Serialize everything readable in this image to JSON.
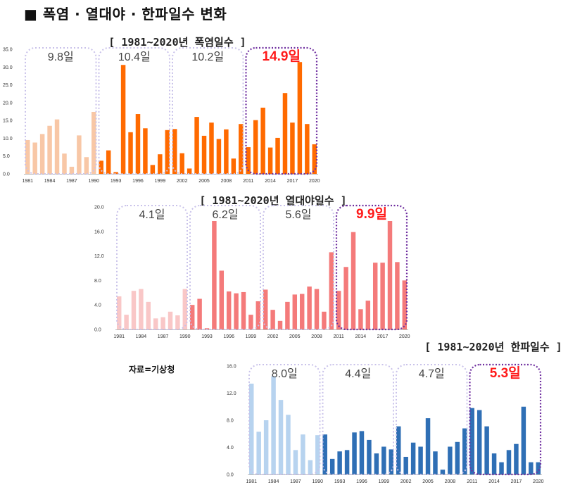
{
  "page": {
    "title": "■ 폭염 · 열대야 · 한파일수 변화",
    "source": "자료=기상청"
  },
  "chart_data": [
    {
      "type": "bar",
      "title": "[ 1981~2020년 폭염일수 ]",
      "categories": [
        1981,
        1982,
        1983,
        1984,
        1985,
        1986,
        1987,
        1988,
        1989,
        1990,
        1991,
        1992,
        1993,
        1994,
        1995,
        1996,
        1997,
        1998,
        1999,
        2000,
        2001,
        2002,
        2003,
        2004,
        2005,
        2006,
        2007,
        2008,
        2009,
        2010,
        2011,
        2012,
        2013,
        2014,
        2015,
        2016,
        2017,
        2018,
        2019,
        2020
      ],
      "values": [
        9.5,
        8.8,
        11.2,
        13.5,
        15.3,
        5.7,
        2.0,
        10.8,
        4.7,
        17.4,
        3.7,
        6.6,
        0.5,
        30.6,
        11.7,
        16.8,
        12.8,
        2.5,
        5.5,
        12.3,
        12.6,
        5.8,
        1.5,
        16.0,
        10.7,
        14.4,
        9.8,
        12.5,
        4.3,
        14.0,
        7.5,
        15.1,
        18.6,
        7.4,
        10.1,
        22.7,
        14.4,
        31.4,
        14.0,
        8.3
      ],
      "xticks": [
        "1981",
        "1984",
        "1987",
        "1990",
        "1993",
        "1996",
        "1999",
        "2002",
        "2005",
        "2008",
        "2011",
        "2014",
        "2017",
        "2020"
      ],
      "yticks": [
        "0.0",
        "5.0",
        "10.0",
        "15.0",
        "20.0",
        "25.0",
        "30.0",
        "35.0"
      ],
      "ylim": [
        0,
        35
      ],
      "decade_averages": [
        "9.8일",
        "10.4일",
        "10.2일",
        "14.9일"
      ],
      "colors": {
        "light": "#f8c7a6",
        "dark": "#ff6a00"
      }
    },
    {
      "type": "bar",
      "title": "[ 1981~2020년 열대야일수 ]",
      "categories": [
        1981,
        1982,
        1983,
        1984,
        1985,
        1986,
        1987,
        1988,
        1989,
        1990,
        1991,
        1992,
        1993,
        1994,
        1995,
        1996,
        1997,
        1998,
        1999,
        2000,
        2001,
        2002,
        2003,
        2004,
        2005,
        2006,
        2007,
        2008,
        2009,
        2010,
        2011,
        2012,
        2013,
        2014,
        2015,
        2016,
        2017,
        2018,
        2019,
        2020
      ],
      "values": [
        5.4,
        2.4,
        6.3,
        6.6,
        4.5,
        1.8,
        2.0,
        2.9,
        2.3,
        6.6,
        4.0,
        5.0,
        0.2,
        17.7,
        9.6,
        6.2,
        5.9,
        6.1,
        2.4,
        4.6,
        6.5,
        3.2,
        1.4,
        4.5,
        5.7,
        5.8,
        7.0,
        6.6,
        2.9,
        12.6,
        6.3,
        10.2,
        15.9,
        3.3,
        4.7,
        10.9,
        10.9,
        17.7,
        11.0,
        8.0
      ],
      "xticks": [
        "1981",
        "1984",
        "1987",
        "1990",
        "1993",
        "1996",
        "1999",
        "2002",
        "2005",
        "2008",
        "2011",
        "2014",
        "2017",
        "2020"
      ],
      "yticks": [
        "0.0",
        "4.0",
        "8.0",
        "12.0",
        "16.0",
        "20.0"
      ],
      "ylim": [
        0,
        20
      ],
      "decade_averages": [
        "4.1일",
        "6.2일",
        "5.6일",
        "9.9일"
      ],
      "colors": {
        "light": "#f9c7c7",
        "dark": "#f47a7a"
      }
    },
    {
      "type": "bar",
      "title": "[ 1981~2020년 한파일수 ]",
      "categories": [
        1981,
        1982,
        1983,
        1984,
        1985,
        1986,
        1987,
        1988,
        1989,
        1990,
        1991,
        1992,
        1993,
        1994,
        1995,
        1996,
        1997,
        1998,
        1999,
        2000,
        2001,
        2002,
        2003,
        2004,
        2005,
        2006,
        2007,
        2008,
        2009,
        2010,
        2011,
        2012,
        2013,
        2014,
        2015,
        2016,
        2017,
        2018,
        2019,
        2020
      ],
      "values": [
        13.4,
        6.3,
        8.0,
        14.5,
        11.0,
        8.8,
        3.6,
        5.9,
        2.1,
        5.8,
        5.9,
        2.3,
        3.4,
        3.6,
        6.2,
        6.4,
        5.1,
        3.1,
        4.1,
        3.7,
        7.1,
        2.6,
        4.7,
        4.1,
        8.3,
        3.4,
        0.7,
        4.1,
        4.8,
        6.8,
        9.8,
        9.5,
        7.1,
        3.1,
        1.8,
        3.6,
        4.5,
        10.0,
        1.8,
        1.8
      ],
      "xticks": [
        "1981",
        "1984",
        "1987",
        "1990",
        "1993",
        "1996",
        "1999",
        "2002",
        "2005",
        "2008",
        "2011",
        "2014",
        "2017",
        "2020"
      ],
      "yticks": [
        "0.0",
        "4.0",
        "8.0",
        "12.0",
        "16.0"
      ],
      "ylim": [
        0,
        16
      ],
      "decade_averages": [
        "8.0일",
        "4.4일",
        "4.7일",
        "5.3일"
      ],
      "colors": {
        "light": "#b7d3ef",
        "dark": "#2f6fb5"
      }
    }
  ]
}
